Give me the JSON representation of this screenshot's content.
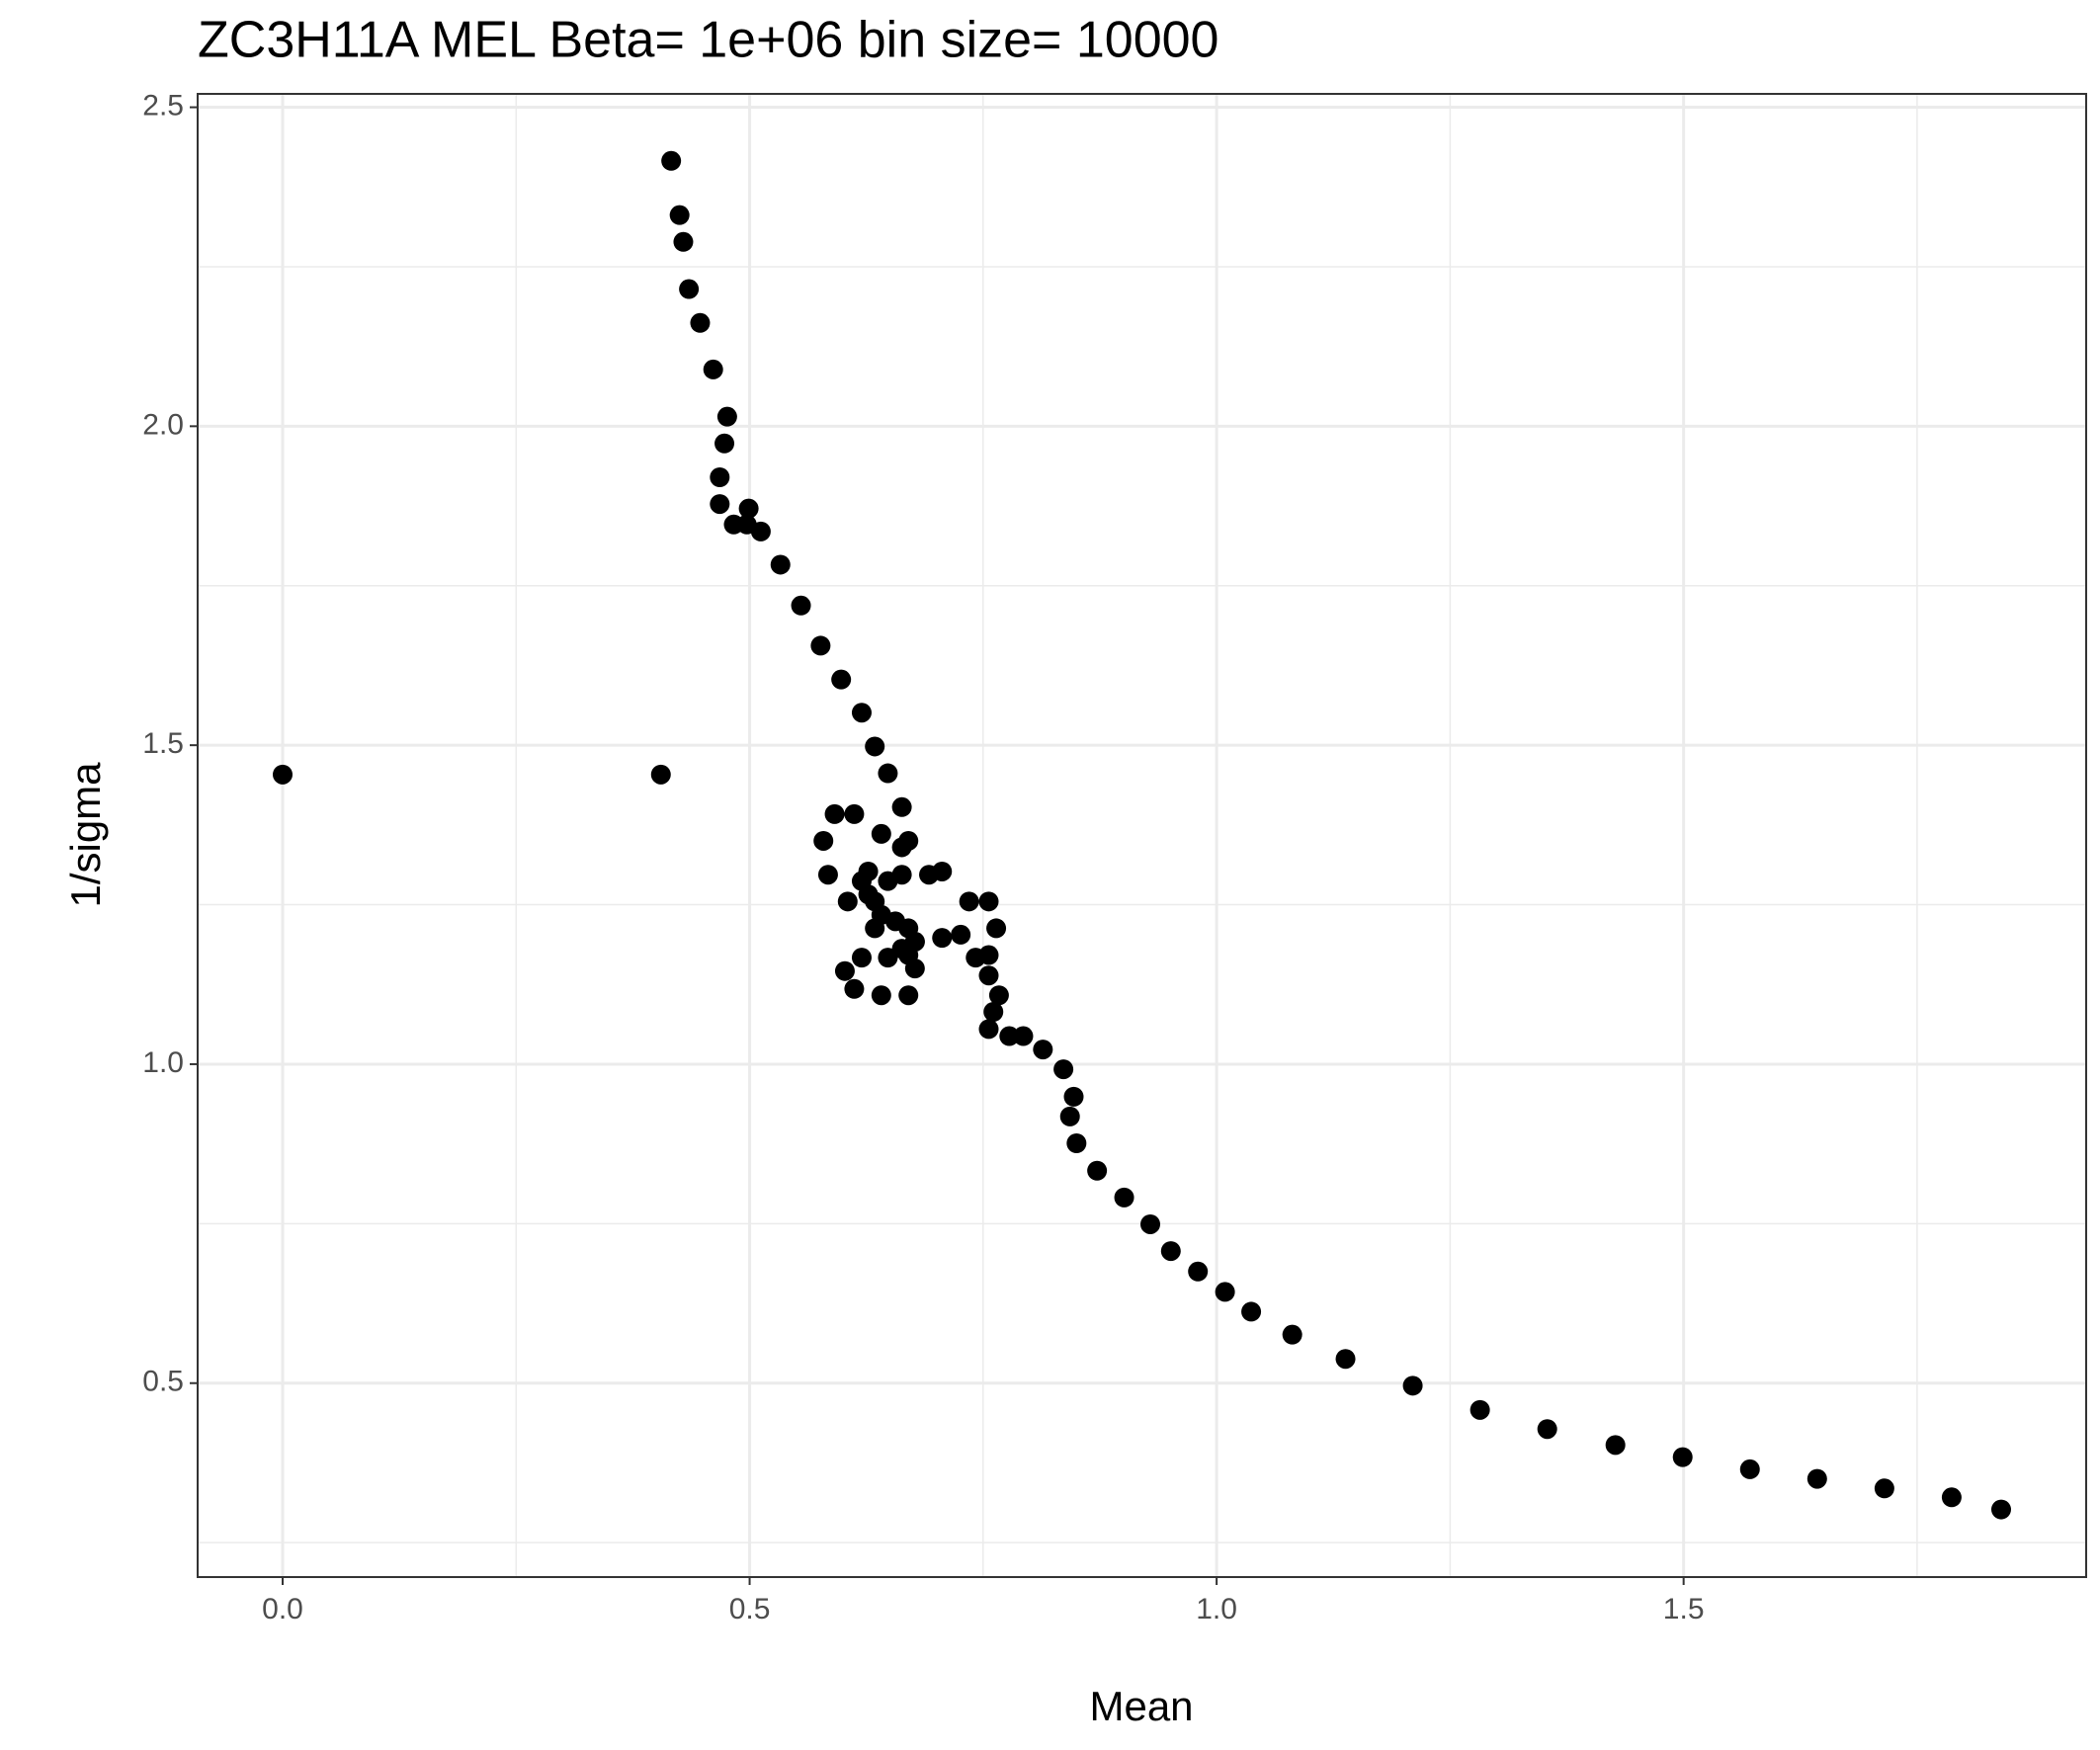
{
  "chart_data": {
    "type": "scatter",
    "title": "ZC3H11A MEL  Beta=  1e+06  bin size=  10000",
    "x_label": "Mean",
    "y_label": "1/sigma",
    "xlim": [
      -0.091,
      1.931
    ],
    "ylim": [
      0.196,
      2.521
    ],
    "xticks": [
      {
        "value": 0,
        "label": "0.0"
      },
      0.5,
      {
        "value": 1,
        "label": "1.0"
      },
      1.5
    ],
    "yticks": [
      0.5,
      {
        "value": 1,
        "label": "1.0"
      },
      1.5,
      {
        "value": 2,
        "label": "2.0"
      },
      2.5
    ],
    "x_minor_ticks": [
      0.25,
      0.75,
      1.25,
      1.75
    ],
    "y_minor_ticks": [
      0.25,
      0.75,
      1.25,
      1.75,
      2.25
    ],
    "grid": true,
    "color": "#000000",
    "x": [
      0,
      0.405,
      0.416,
      0.425,
      0.429,
      0.435,
      0.447,
      0.461,
      0.476,
      0.473,
      0.468,
      0.468,
      0.483,
      0.497,
      0.499,
      0.512,
      0.533,
      0.555,
      0.576,
      0.598,
      0.62,
      0.634,
      0.648,
      0.663,
      0.67,
      0.663,
      0.641,
      0.612,
      0.591,
      0.579,
      0.584,
      0.605,
      0.634,
      0.663,
      0.677,
      0.656,
      0.634,
      0.62,
      0.627,
      0.663,
      0.706,
      0.692,
      0.648,
      0.627,
      0.641,
      0.67,
      0.706,
      0.726,
      0.735,
      0.756,
      0.764,
      0.756,
      0.742,
      0.756,
      0.767,
      0.761,
      0.756,
      0.778,
      0.793,
      0.814,
      0.836,
      0.847,
      0.843,
      0.85,
      0.872,
      0.901,
      0.929,
      0.951,
      0.98,
      1.009,
      1.037,
      1.081,
      1.138,
      1.21,
      1.282,
      1.354,
      1.427,
      1.499,
      1.571,
      1.643,
      1.715,
      1.787,
      1.84,
      0.677,
      0.67,
      0.648,
      0.62,
      0.602,
      0.612,
      0.641,
      0.67,
      0.677
    ],
    "y": [
      1.454,
      1.454,
      2.416,
      2.331,
      2.289,
      2.215,
      2.162,
      2.089,
      2.015,
      1.973,
      1.92,
      1.878,
      1.846,
      1.846,
      1.871,
      1.835,
      1.783,
      1.719,
      1.656,
      1.603,
      1.551,
      1.498,
      1.456,
      1.403,
      1.35,
      1.34,
      1.361,
      1.392,
      1.392,
      1.35,
      1.297,
      1.255,
      1.213,
      1.181,
      1.192,
      1.224,
      1.255,
      1.287,
      1.302,
      1.297,
      1.302,
      1.297,
      1.287,
      1.266,
      1.234,
      1.213,
      1.198,
      1.203,
      1.255,
      1.255,
      1.213,
      1.171,
      1.167,
      1.139,
      1.108,
      1.082,
      1.055,
      1.044,
      1.044,
      1.023,
      0.992,
      0.949,
      0.918,
      0.876,
      0.833,
      0.791,
      0.749,
      0.707,
      0.675,
      0.643,
      0.612,
      0.576,
      0.538,
      0.496,
      0.458,
      0.428,
      0.403,
      0.384,
      0.365,
      0.35,
      0.335,
      0.321,
      0.302,
      1.192,
      1.171,
      1.167,
      1.167,
      1.146,
      1.118,
      1.108,
      1.108,
      1.15
    ]
  }
}
